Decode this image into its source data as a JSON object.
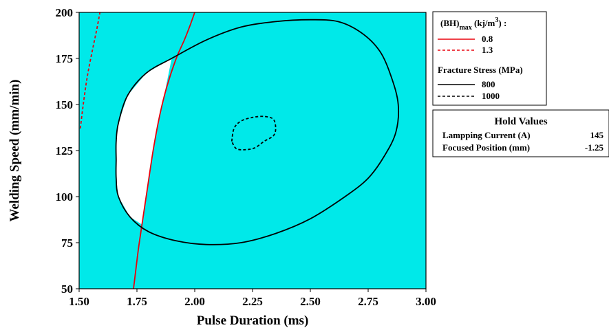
{
  "chart_data": {
    "type": "contour-overlay",
    "xlabel": "Pulse Duration (ms)",
    "ylabel": "Welding Speed (mm/min)",
    "xlim": [
      1.5,
      3.0
    ],
    "ylim": [
      50,
      200
    ],
    "xticks": [
      "1.50",
      "1.75",
      "2.00",
      "2.25",
      "2.50",
      "2.75",
      "3.00"
    ],
    "yticks": [
      "50",
      "75",
      "100",
      "125",
      "150",
      "175",
      "200"
    ],
    "colors": {
      "feasible_bg": "#00e9e9",
      "optimal_region": "#ffffff",
      "bh_line": "#e8000b",
      "stress_line": "#000000"
    },
    "legend": {
      "bh_heading": {
        "base": "(BH)",
        "sub": "max",
        "unit_open": " (kj/m",
        "sup": "3",
        "unit_close": ")",
        "trail": " :"
      },
      "bh_items": [
        {
          "label": "0.8",
          "style": "solid"
        },
        {
          "label": "1.3",
          "style": "dashed"
        }
      ],
      "stress_heading": "Fracture Stress (MPa)",
      "stress_items": [
        {
          "label": "800",
          "style": "solid"
        },
        {
          "label": "1000",
          "style": "dashed"
        }
      ]
    },
    "hold_values": {
      "title": "Hold Values",
      "rows": [
        {
          "name": "Lampping Current (A)",
          "value": "145"
        },
        {
          "name": "Focused Position (mm)",
          "value": "-1.25"
        }
      ]
    },
    "series": [
      {
        "name": "0.8",
        "group": "bh",
        "style": "solid",
        "points": [
          [
            1.735,
            50
          ],
          [
            1.745,
            60
          ],
          [
            1.76,
            75
          ],
          [
            1.79,
            100
          ],
          [
            1.82,
            125
          ],
          [
            1.85,
            145
          ],
          [
            1.88,
            160
          ],
          [
            1.92,
            175
          ],
          [
            1.955,
            185
          ],
          [
            1.98,
            193
          ],
          [
            2.0,
            200
          ]
        ]
      },
      {
        "name": "1.3",
        "group": "bh",
        "style": "dashed",
        "points": [
          [
            1.505,
            137
          ],
          [
            1.52,
            152
          ],
          [
            1.535,
            165
          ],
          [
            1.555,
            178
          ],
          [
            1.575,
            190
          ],
          [
            1.59,
            200
          ]
        ]
      },
      {
        "name": "800",
        "group": "stress",
        "style": "solid",
        "points": [
          [
            1.66,
            120
          ],
          [
            1.66,
            130
          ],
          [
            1.67,
            140
          ],
          [
            1.71,
            155
          ],
          [
            1.79,
            167
          ],
          [
            1.9,
            175
          ],
          [
            2.05,
            185
          ],
          [
            2.2,
            192
          ],
          [
            2.35,
            195
          ],
          [
            2.5,
            196
          ],
          [
            2.62,
            195
          ],
          [
            2.72,
            189
          ],
          [
            2.8,
            179
          ],
          [
            2.85,
            165
          ],
          [
            2.88,
            150
          ],
          [
            2.87,
            135
          ],
          [
            2.82,
            122
          ],
          [
            2.75,
            110
          ],
          [
            2.65,
            100
          ],
          [
            2.5,
            88
          ],
          [
            2.35,
            80
          ],
          [
            2.2,
            75
          ],
          [
            2.05,
            74
          ],
          [
            1.92,
            76
          ],
          [
            1.8,
            81
          ],
          [
            1.72,
            89
          ],
          [
            1.67,
            100
          ],
          [
            1.66,
            110
          ],
          [
            1.66,
            120
          ]
        ]
      },
      {
        "name": "1000",
        "group": "stress",
        "style": "dashed",
        "points": [
          [
            2.16,
            130
          ],
          [
            2.17,
            137
          ],
          [
            2.2,
            141
          ],
          [
            2.25,
            143
          ],
          [
            2.3,
            143.5
          ],
          [
            2.34,
            142
          ],
          [
            2.35,
            137
          ],
          [
            2.34,
            133
          ],
          [
            2.3,
            130
          ],
          [
            2.26,
            126.5
          ],
          [
            2.22,
            125.5
          ],
          [
            2.18,
            126
          ],
          [
            2.16,
            130
          ]
        ]
      }
    ],
    "optimal_region": {
      "points": [
        [
          1.66,
          120
        ],
        [
          1.66,
          130
        ],
        [
          1.67,
          140
        ],
        [
          1.71,
          155
        ],
        [
          1.79,
          167
        ],
        [
          1.9,
          175
        ],
        [
          1.86,
          150
        ],
        [
          1.84,
          140
        ],
        [
          1.82,
          125
        ],
        [
          1.79,
          100
        ],
        [
          1.77,
          85
        ],
        [
          1.72,
          89
        ],
        [
          1.67,
          100
        ],
        [
          1.66,
          110
        ],
        [
          1.66,
          120
        ]
      ]
    }
  }
}
